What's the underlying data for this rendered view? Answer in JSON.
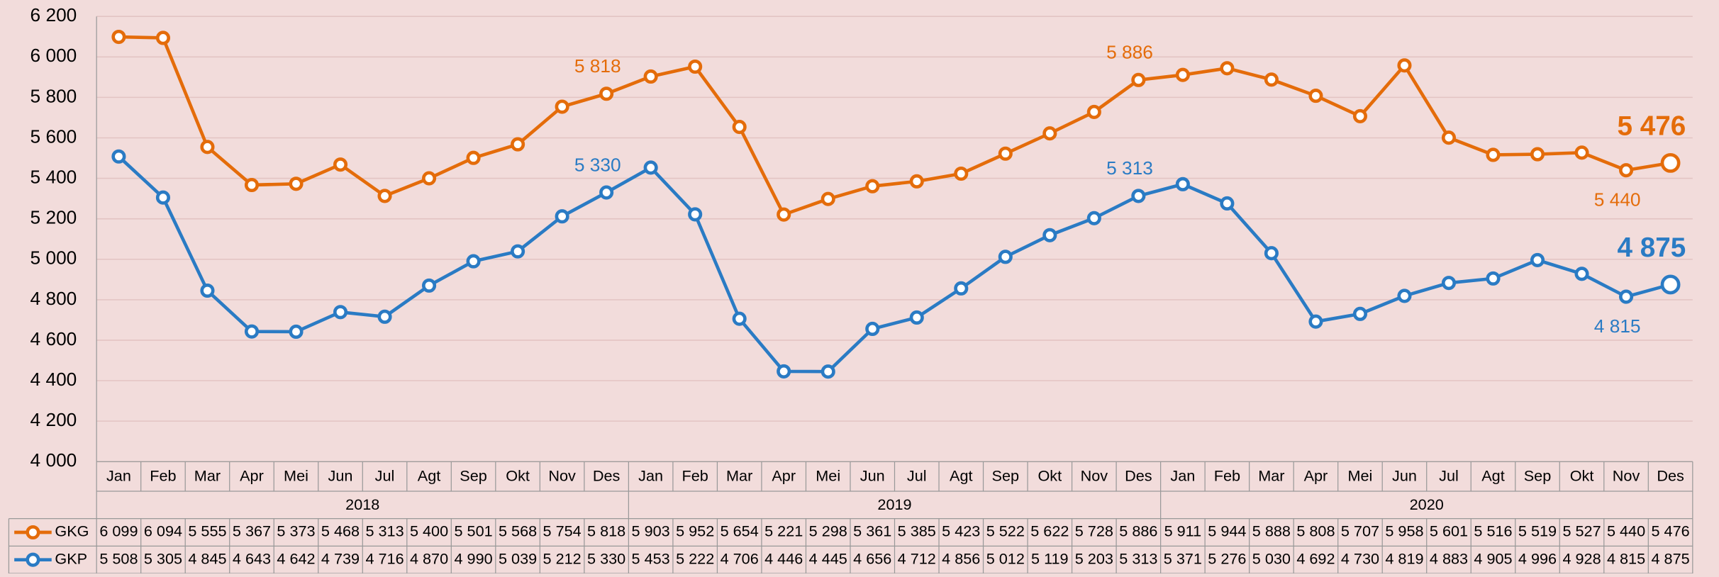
{
  "chart_data": {
    "type": "line",
    "categories": [
      "Jan",
      "Feb",
      "Mar",
      "Apr",
      "Mei",
      "Jun",
      "Jul",
      "Agt",
      "Sep",
      "Okt",
      "Nov",
      "Des",
      "Jan",
      "Feb",
      "Mar",
      "Apr",
      "Mei",
      "Jun",
      "Jul",
      "Agt",
      "Sep",
      "Okt",
      "Nov",
      "Des",
      "Jan",
      "Feb",
      "Mar",
      "Apr",
      "Mei",
      "Jun",
      "Jul",
      "Agt",
      "Sep",
      "Okt",
      "Nov",
      "Des"
    ],
    "x_groups": [
      "2018",
      "2019",
      "2020"
    ],
    "series": [
      {
        "name": "GKG",
        "color": "#e46c0a",
        "values": [
          6099,
          6094,
          5555,
          5367,
          5373,
          5468,
          5313,
          5400,
          5501,
          5568,
          5754,
          5818,
          5903,
          5952,
          5654,
          5221,
          5298,
          5361,
          5385,
          5423,
          5522,
          5622,
          5728,
          5886,
          5911,
          5944,
          5888,
          5808,
          5707,
          5958,
          5601,
          5516,
          5519,
          5527,
          5440,
          5476
        ],
        "value_labels": [
          "6 099",
          "6 094",
          "5 555",
          "5 367",
          "5 373",
          "5 468",
          "5 313",
          "5 400",
          "5 501",
          "5 568",
          "5 754",
          "5 818",
          "5 903",
          "5 952",
          "5 654",
          "5 221",
          "5 298",
          "5 361",
          "5 385",
          "5 423",
          "5 522",
          "5 622",
          "5 728",
          "5 886",
          "5 911",
          "5 944",
          "5 888",
          "5 808",
          "5 707",
          "5 958",
          "5 601",
          "5 516",
          "5 519",
          "5 527",
          "5 440",
          "5 476"
        ]
      },
      {
        "name": "GKP",
        "color": "#2a7bc4",
        "values": [
          5508,
          5305,
          4845,
          4643,
          4642,
          4739,
          4716,
          4870,
          4990,
          5039,
          5212,
          5330,
          5453,
          5222,
          4706,
          4446,
          4445,
          4656,
          4712,
          4856,
          5012,
          5119,
          5203,
          5313,
          5371,
          5276,
          5030,
          4692,
          4730,
          4819,
          4883,
          4905,
          4996,
          4928,
          4815,
          4875
        ],
        "value_labels": [
          "5 508",
          "5 305",
          "4 845",
          "4 643",
          "4 642",
          "4 739",
          "4 716",
          "4 870",
          "4 990",
          "5 039",
          "5 212",
          "5 330",
          "5 453",
          "5 222",
          "4 706",
          "4 446",
          "4 445",
          "4 656",
          "4 712",
          "4 856",
          "5 012",
          "5 119",
          "5 203",
          "5 313",
          "5 371",
          "5 276",
          "5 030",
          "4 692",
          "4 730",
          "4 819",
          "4 883",
          "4 905",
          "4 996",
          "4 928",
          "4 815",
          "4 875"
        ]
      }
    ],
    "ylim": [
      4000,
      6200
    ],
    "yticks": [
      {
        "value": 4000,
        "label": "4 000"
      },
      {
        "value": 4200,
        "label": "4 200"
      },
      {
        "value": 4400,
        "label": "4 400"
      },
      {
        "value": 4600,
        "label": "4 600"
      },
      {
        "value": 4800,
        "label": "4 800"
      },
      {
        "value": 5000,
        "label": "5 000"
      },
      {
        "value": 5200,
        "label": "5 200"
      },
      {
        "value": 5400,
        "label": "5 400"
      },
      {
        "value": 5600,
        "label": "5 600"
      },
      {
        "value": 5800,
        "label": "5 800"
      },
      {
        "value": 6000,
        "label": "6 000"
      },
      {
        "value": 6200,
        "label": "6 200"
      }
    ],
    "grid": true
  }
}
